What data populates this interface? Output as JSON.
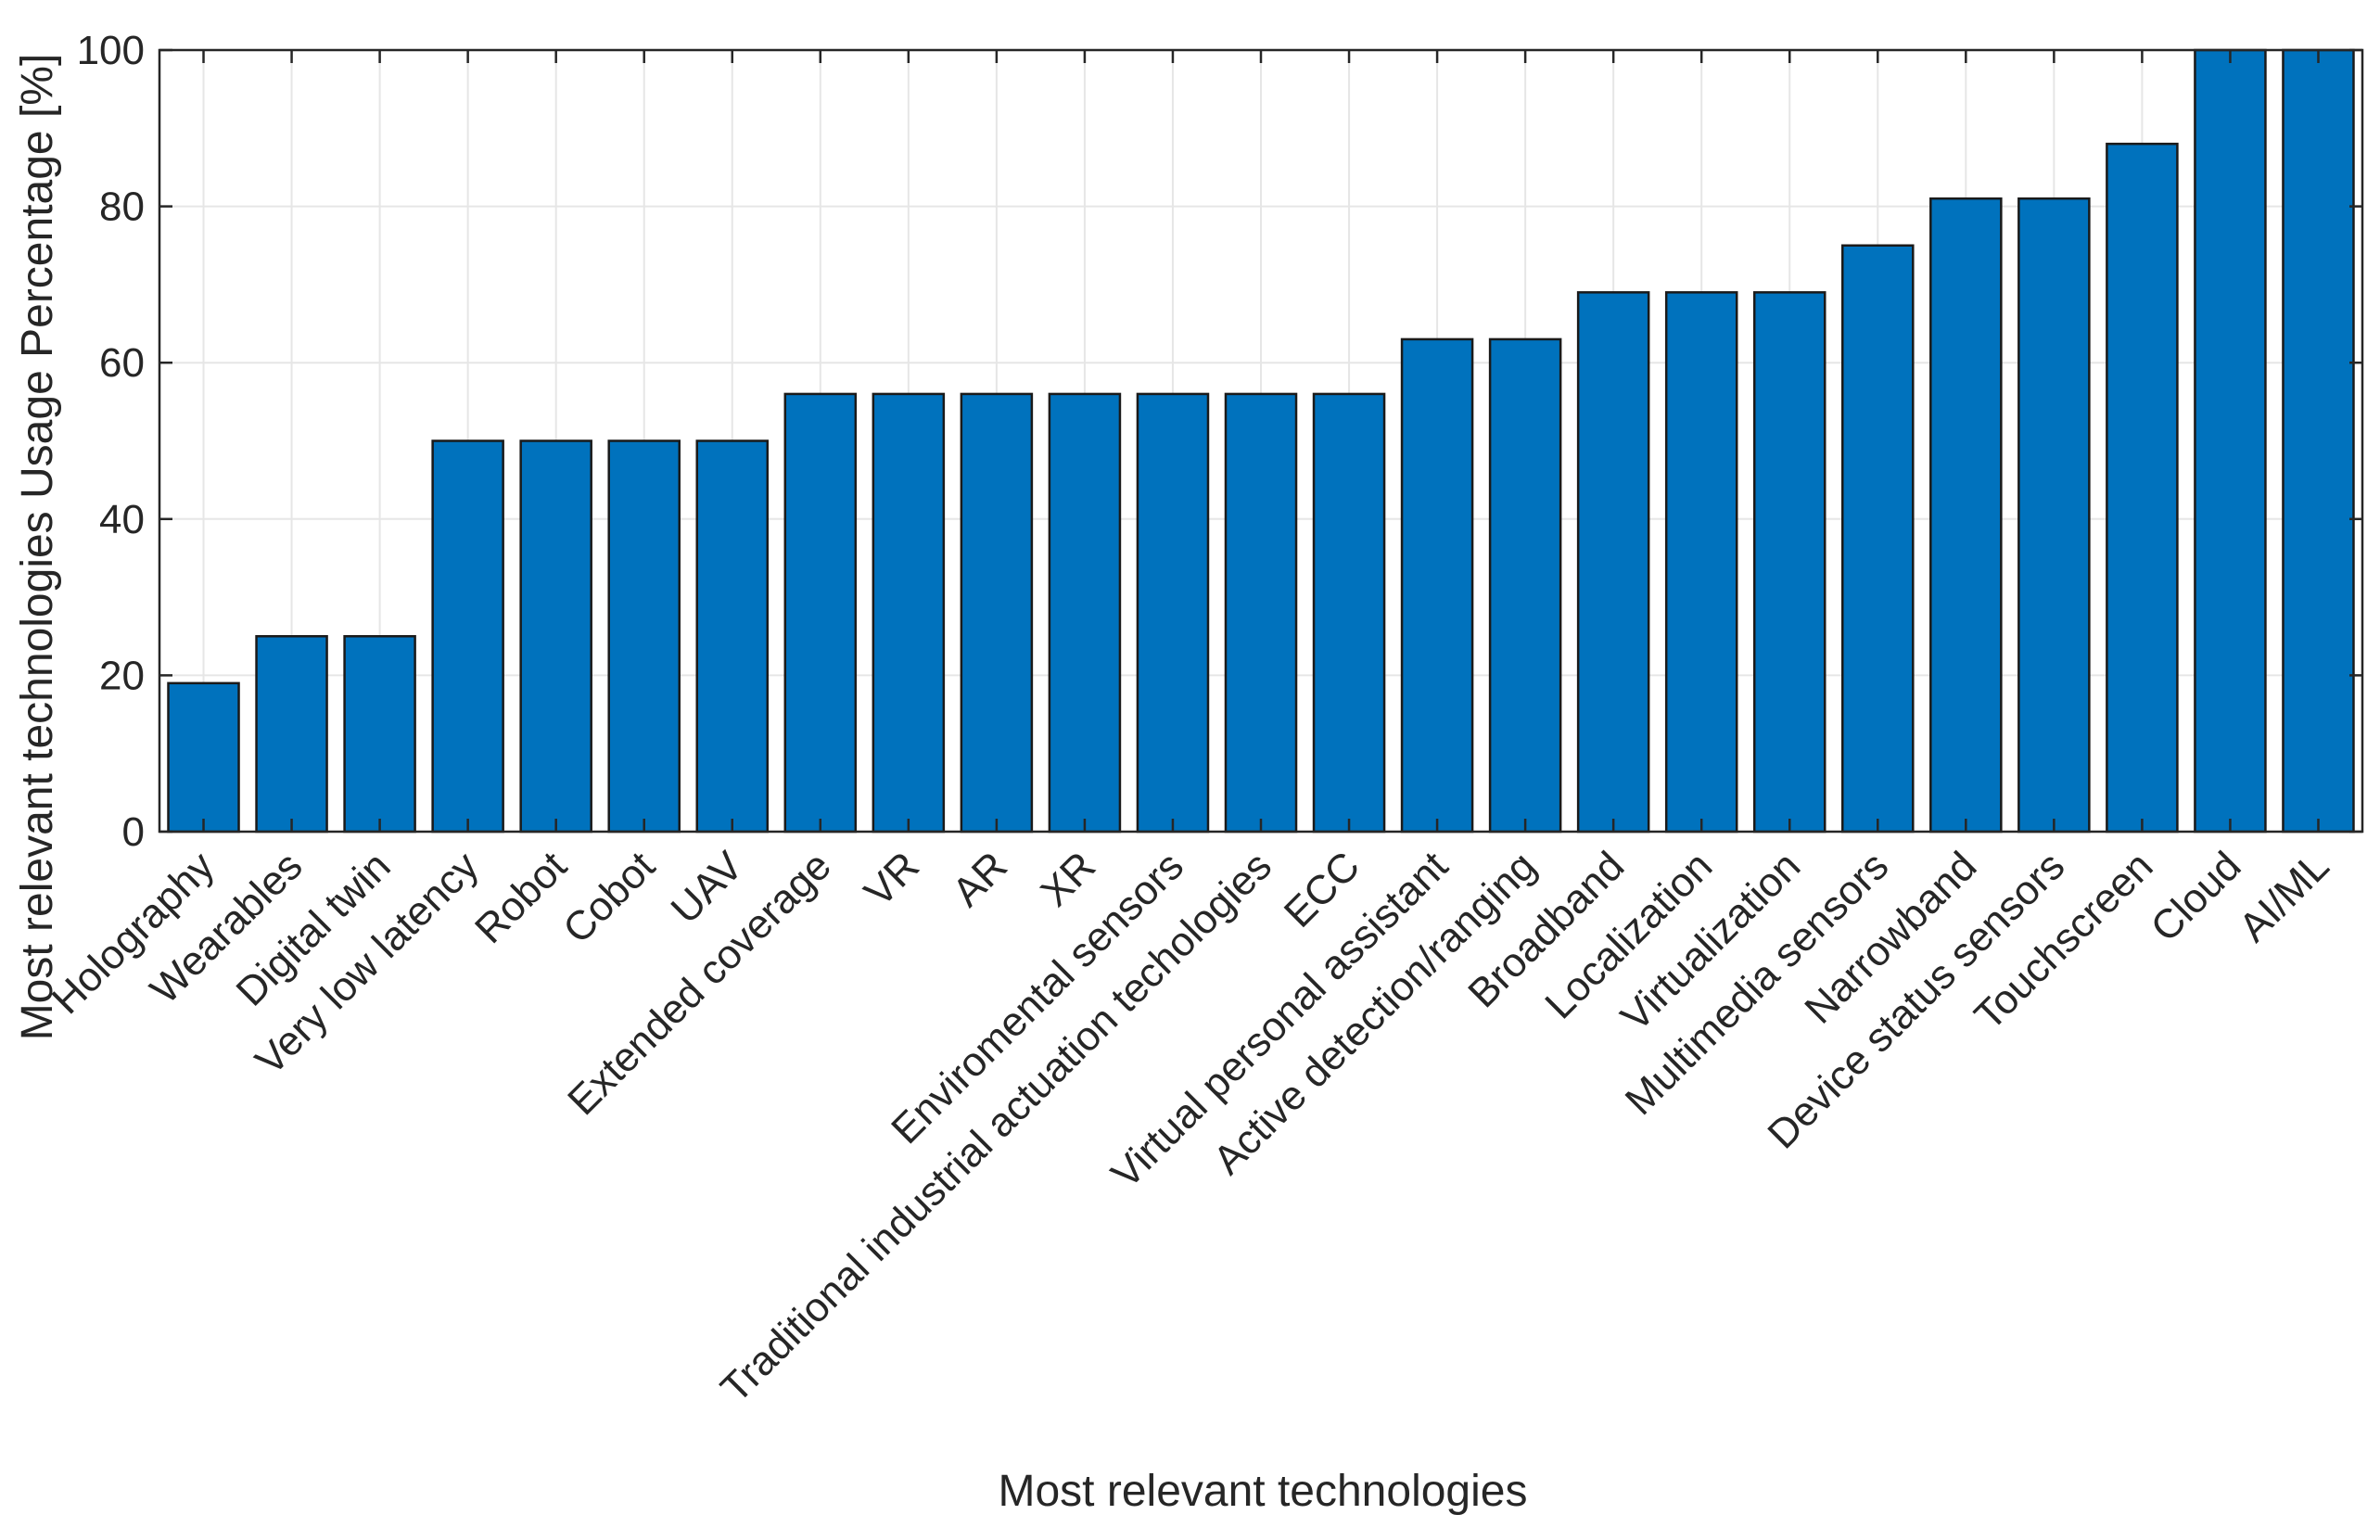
{
  "chart_data": {
    "type": "bar",
    "title": "",
    "xlabel": "Most relevant technologies",
    "ylabel": "Most relevant technologies Usage Percentage [%]",
    "ylim": [
      0,
      100
    ],
    "yticks": [
      0,
      20,
      40,
      60,
      80,
      100
    ],
    "grid": true,
    "bar_color": "#0072BD",
    "categories": [
      "Holography",
      "Wearables",
      "Digital twin",
      "Very low latency",
      "Robot",
      "Cobot",
      "UAV",
      "Extended coverage",
      "VR",
      "AR",
      "XR",
      "Enviromental sensors",
      "Traditional industrial actuation techologies",
      "ECC",
      "Virtual personal assistant",
      "Active detection/ranging",
      "Broadband",
      "Localization",
      "Virtualization",
      "Multimedia sensors",
      "Narrowband",
      "Device status sensors",
      "Touchscreen",
      "Cloud",
      "AI/ML"
    ],
    "values": [
      19,
      25,
      25,
      50,
      50,
      50,
      50,
      56,
      56,
      56,
      56,
      56,
      56,
      56,
      63,
      63,
      69,
      69,
      69,
      75,
      81,
      81,
      88,
      100,
      100
    ]
  }
}
